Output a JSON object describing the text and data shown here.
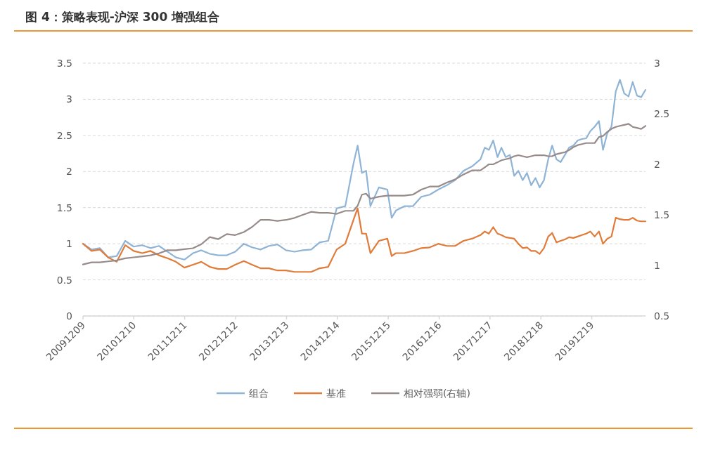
{
  "chart_data": {
    "type": "line",
    "title": "图 4：策略表现-沪深 300 增强组合",
    "x": [
      "2009-12-09",
      "2010-02-09",
      "2010-04-09",
      "2010-06-09",
      "2010-08-09",
      "2010-10-09",
      "2010-12-09",
      "2011-02-09",
      "2011-04-09",
      "2011-06-09",
      "2011-08-09",
      "2011-10-09",
      "2011-12-09",
      "2012-02-09",
      "2012-04-09",
      "2012-06-09",
      "2012-08-09",
      "2012-10-09",
      "2012-12-09",
      "2013-02-09",
      "2013-04-09",
      "2013-06-09",
      "2013-08-09",
      "2013-10-09",
      "2013-12-09",
      "2014-02-09",
      "2014-04-09",
      "2014-06-09",
      "2014-08-09",
      "2014-10-09",
      "2014-12-09",
      "2015-02-09",
      "2015-04-09",
      "2015-05-09",
      "2015-06-09",
      "2015-07-09",
      "2015-08-09",
      "2015-10-09",
      "2015-12-09",
      "2016-01-09",
      "2016-02-09",
      "2016-04-09",
      "2016-06-09",
      "2016-08-09",
      "2016-10-09",
      "2016-12-09",
      "2017-02-09",
      "2017-04-09",
      "2017-06-09",
      "2017-08-09",
      "2017-10-09",
      "2017-11-09",
      "2017-12-09",
      "2018-01-09",
      "2018-02-09",
      "2018-03-09",
      "2018-04-09",
      "2018-05-09",
      "2018-06-09",
      "2018-07-09",
      "2018-08-09",
      "2018-09-09",
      "2018-10-09",
      "2018-11-09",
      "2018-12-09",
      "2019-01-09",
      "2019-02-09",
      "2019-03-09",
      "2019-04-09",
      "2019-05-09",
      "2019-06-09",
      "2019-07-09",
      "2019-08-09",
      "2019-09-09",
      "2019-10-09",
      "2019-11-09",
      "2019-12-09",
      "2020-01-09",
      "2020-02-09",
      "2020-03-09",
      "2020-04-09",
      "2020-05-09",
      "2020-06-09",
      "2020-07-09",
      "2020-08-09",
      "2020-09-09",
      "2020-10-09",
      "2020-11-09",
      "2020-12-09",
      "2021-01-09"
    ],
    "series": [
      {
        "name": "组合",
        "color": "#8fb4d6",
        "values": [
          1.0,
          0.92,
          0.94,
          0.81,
          0.83,
          1.04,
          0.96,
          0.98,
          0.94,
          0.97,
          0.89,
          0.81,
          0.78,
          0.87,
          0.91,
          0.86,
          0.84,
          0.84,
          0.89,
          1.0,
          0.95,
          0.92,
          0.97,
          0.99,
          0.91,
          0.89,
          0.91,
          0.92,
          1.02,
          1.04,
          1.49,
          1.52,
          2.11,
          2.36,
          1.98,
          2.01,
          1.52,
          1.78,
          1.75,
          1.36,
          1.46,
          1.52,
          1.52,
          1.65,
          1.68,
          1.75,
          1.81,
          1.88,
          2.01,
          2.07,
          2.17,
          2.33,
          2.3,
          2.43,
          2.2,
          2.33,
          2.2,
          2.23,
          1.94,
          2.01,
          1.88,
          1.98,
          1.81,
          1.91,
          1.78,
          1.88,
          2.17,
          2.36,
          2.17,
          2.13,
          2.23,
          2.33,
          2.36,
          2.43,
          2.45,
          2.46,
          2.56,
          2.62,
          2.7,
          2.3,
          2.53,
          2.62,
          3.11,
          3.27,
          3.08,
          3.04,
          3.24,
          3.05,
          3.03,
          3.13
        ]
      },
      {
        "name": "基准",
        "color": "#e07b39",
        "values": [
          1.0,
          0.9,
          0.92,
          0.81,
          0.75,
          0.98,
          0.9,
          0.87,
          0.9,
          0.84,
          0.8,
          0.75,
          0.67,
          0.71,
          0.75,
          0.68,
          0.65,
          0.65,
          0.71,
          0.76,
          0.71,
          0.66,
          0.66,
          0.63,
          0.63,
          0.61,
          0.61,
          0.61,
          0.66,
          0.68,
          0.92,
          1.0,
          1.33,
          1.49,
          1.14,
          1.14,
          0.87,
          1.04,
          1.07,
          0.83,
          0.87,
          0.87,
          0.9,
          0.94,
          0.95,
          1.0,
          0.97,
          0.97,
          1.04,
          1.07,
          1.12,
          1.17,
          1.14,
          1.23,
          1.14,
          1.12,
          1.09,
          1.08,
          1.07,
          1.0,
          0.94,
          0.95,
          0.9,
          0.9,
          0.86,
          0.94,
          1.1,
          1.15,
          1.02,
          1.04,
          1.06,
          1.09,
          1.08,
          1.1,
          1.12,
          1.14,
          1.17,
          1.1,
          1.17,
          1.0,
          1.07,
          1.1,
          1.36,
          1.34,
          1.33,
          1.33,
          1.36,
          1.32,
          1.31,
          1.31
        ]
      },
      {
        "name": "相对强弱(右轴)",
        "color": "#978b8a",
        "axis": "y2",
        "values": [
          1.01,
          1.03,
          1.03,
          1.04,
          1.05,
          1.07,
          1.08,
          1.09,
          1.1,
          1.12,
          1.15,
          1.15,
          1.16,
          1.17,
          1.21,
          1.28,
          1.26,
          1.31,
          1.3,
          1.33,
          1.38,
          1.45,
          1.45,
          1.44,
          1.45,
          1.47,
          1.5,
          1.53,
          1.52,
          1.52,
          1.51,
          1.54,
          1.54,
          1.59,
          1.7,
          1.71,
          1.66,
          1.68,
          1.69,
          1.69,
          1.69,
          1.69,
          1.7,
          1.75,
          1.78,
          1.78,
          1.82,
          1.85,
          1.9,
          1.94,
          1.94,
          1.97,
          2.0,
          2.0,
          2.02,
          2.04,
          2.05,
          2.06,
          2.08,
          2.09,
          2.08,
          2.07,
          2.08,
          2.09,
          2.09,
          2.09,
          2.08,
          2.08,
          2.1,
          2.11,
          2.12,
          2.14,
          2.17,
          2.19,
          2.2,
          2.21,
          2.21,
          2.21,
          2.27,
          2.28,
          2.32,
          2.35,
          2.37,
          2.38,
          2.39,
          2.4,
          2.37,
          2.36,
          2.35,
          2.38
        ]
      }
    ],
    "xlim": [
      "2009-12-09",
      "2021-01-09"
    ],
    "xticks": [
      {
        "value": "2009-12-09",
        "label": "20091209"
      },
      {
        "value": "2010-12-10",
        "label": "20101210"
      },
      {
        "value": "2011-12-11",
        "label": "20111211"
      },
      {
        "value": "2012-12-12",
        "label": "20121212"
      },
      {
        "value": "2013-12-13",
        "label": "20131213"
      },
      {
        "value": "2014-12-14",
        "label": "20141214"
      },
      {
        "value": "2015-12-15",
        "label": "20151215"
      },
      {
        "value": "2016-12-16",
        "label": "20161216"
      },
      {
        "value": "2017-12-17",
        "label": "20171217"
      },
      {
        "value": "2018-12-18",
        "label": "20181218"
      },
      {
        "value": "2019-12-19",
        "label": "20191219"
      }
    ],
    "ylim": [
      0,
      3.5
    ],
    "yticks": [
      0,
      0.5,
      1,
      1.5,
      2,
      2.5,
      3,
      3.5
    ],
    "y2lim": [
      0.5,
      3
    ],
    "y2ticks": [
      0.5,
      1,
      1.5,
      2,
      2.5,
      3
    ],
    "grid": "y",
    "legend": "bottom"
  }
}
